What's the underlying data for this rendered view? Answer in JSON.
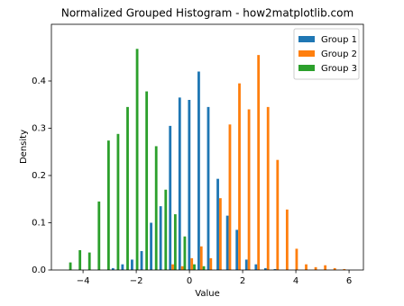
{
  "chart_data": {
    "type": "grouped_histogram",
    "title": "Normalized Grouped Histogram - how2matplotlib.com",
    "x_label": "Value",
    "y_label": "Density",
    "bins": [
      -4.75,
      -4.392,
      -4.033,
      -3.675,
      -3.317,
      -2.958,
      -2.6,
      -2.242,
      -1.883,
      -1.525,
      -1.167,
      -0.808,
      -0.45,
      -0.092,
      0.267,
      0.625,
      0.983,
      1.342,
      1.7,
      2.058,
      2.417,
      2.775,
      3.133,
      3.492,
      3.85,
      4.208,
      4.567,
      4.925,
      5.283,
      5.642,
      6.0
    ],
    "series": [
      {
        "name": "Group 1",
        "color": "#1f77b4",
        "values": [
          0,
          0,
          0,
          0,
          0,
          0.004,
          0.012,
          0.022,
          0.04,
          0.1,
          0.135,
          0.305,
          0.365,
          0.36,
          0.42,
          0.345,
          0.193,
          0.115,
          0.085,
          0.022,
          0.012,
          0.004,
          0.002,
          0,
          0,
          0,
          0,
          0,
          0,
          0
        ]
      },
      {
        "name": "Group 2",
        "color": "#ff7f0e",
        "values": [
          0,
          0,
          0,
          0,
          0,
          0,
          0,
          0,
          0,
          0,
          0,
          0.012,
          0.008,
          0.025,
          0.05,
          0.025,
          0.152,
          0.308,
          0.395,
          0.34,
          0.455,
          0.345,
          0.233,
          0.128,
          0.045,
          0.012,
          0.006,
          0.01,
          0.004,
          0.002
        ]
      },
      {
        "name": "Group 3",
        "color": "#2ca02c",
        "values": [
          0.016,
          0.042,
          0.037,
          0.145,
          0.274,
          0.288,
          0.345,
          0.468,
          0.378,
          0.262,
          0.17,
          0.118,
          0.071,
          0.012,
          0.008,
          0,
          0,
          0,
          0,
          0,
          0,
          0,
          0,
          0,
          0,
          0,
          0,
          0,
          0,
          0
        ]
      }
    ],
    "xlim": [
      -5.19,
      6.54
    ],
    "xticks": [
      {
        "value": -4,
        "label": "−4"
      },
      {
        "value": -2,
        "label": "−2"
      },
      0,
      2,
      4,
      6
    ],
    "ylim": [
      0,
      0.52
    ],
    "yticks": [
      {
        "value": 0,
        "label": "0.0"
      },
      0.1,
      0.2,
      0.3,
      0.4
    ],
    "legend": "upper right"
  }
}
